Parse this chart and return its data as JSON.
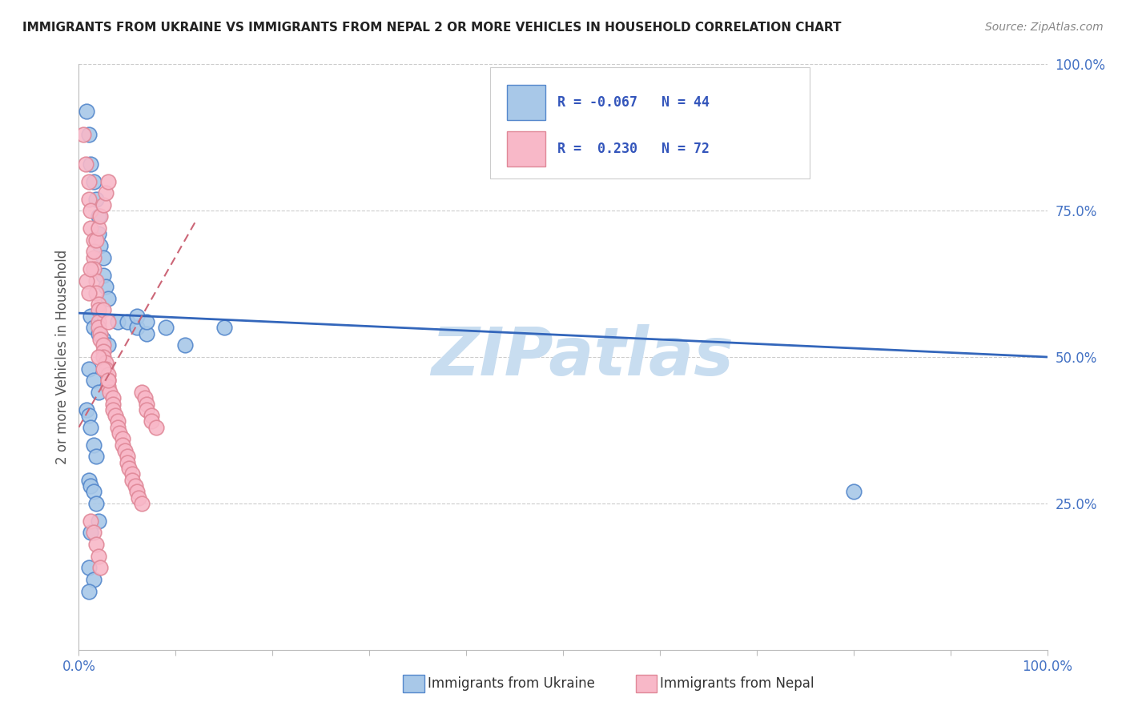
{
  "title": "IMMIGRANTS FROM UKRAINE VS IMMIGRANTS FROM NEPAL 2 OR MORE VEHICLES IN HOUSEHOLD CORRELATION CHART",
  "source": "Source: ZipAtlas.com",
  "ylabel": "2 or more Vehicles in Household",
  "ukraine_color_face": "#a8c8e8",
  "ukraine_color_edge": "#5588cc",
  "nepal_color_face": "#f8b8c8",
  "nepal_color_edge": "#e08898",
  "ukraine_line_color": "#3366bb",
  "nepal_line_color": "#cc6677",
  "watermark": "ZIPatlas",
  "watermark_color": "#c8ddf0",
  "xlim": [
    0.0,
    1.0
  ],
  "ylim": [
    0.0,
    1.0
  ],
  "yticks": [
    0.25,
    0.5,
    0.75,
    1.0
  ],
  "ytick_labels": [
    "25.0%",
    "50.0%",
    "75.0%",
    "100.0%"
  ],
  "xtick_positions": [
    0.0,
    0.1,
    0.2,
    0.3,
    0.4,
    0.5,
    0.6,
    0.7,
    0.8,
    0.9,
    1.0
  ],
  "ukraine_R": -0.067,
  "ukraine_N": 44,
  "nepal_R": 0.23,
  "nepal_N": 72,
  "ukraine_line_x": [
    0.0,
    1.0
  ],
  "ukraine_line_y": [
    0.575,
    0.5
  ],
  "nepal_line_x": [
    0.0,
    0.12
  ],
  "nepal_line_y": [
    0.38,
    0.73
  ],
  "ukraine_scatter_x": [
    0.008,
    0.01,
    0.012,
    0.015,
    0.018,
    0.02,
    0.02,
    0.022,
    0.025,
    0.025,
    0.028,
    0.03,
    0.012,
    0.015,
    0.02,
    0.025,
    0.03,
    0.04,
    0.05,
    0.06,
    0.07,
    0.09,
    0.11,
    0.15,
    0.06,
    0.07,
    0.01,
    0.015,
    0.02,
    0.008,
    0.01,
    0.012,
    0.015,
    0.018,
    0.01,
    0.012,
    0.015,
    0.018,
    0.02,
    0.012,
    0.8,
    0.01,
    0.015,
    0.01
  ],
  "ukraine_scatter_y": [
    0.92,
    0.88,
    0.83,
    0.8,
    0.77,
    0.74,
    0.71,
    0.69,
    0.67,
    0.64,
    0.62,
    0.6,
    0.57,
    0.55,
    0.54,
    0.53,
    0.52,
    0.56,
    0.56,
    0.55,
    0.54,
    0.55,
    0.52,
    0.55,
    0.57,
    0.56,
    0.48,
    0.46,
    0.44,
    0.41,
    0.4,
    0.38,
    0.35,
    0.33,
    0.29,
    0.28,
    0.27,
    0.25,
    0.22,
    0.2,
    0.27,
    0.14,
    0.12,
    0.1
  ],
  "nepal_scatter_x": [
    0.005,
    0.007,
    0.01,
    0.01,
    0.012,
    0.012,
    0.015,
    0.015,
    0.015,
    0.018,
    0.018,
    0.02,
    0.02,
    0.02,
    0.02,
    0.022,
    0.022,
    0.025,
    0.025,
    0.025,
    0.028,
    0.028,
    0.03,
    0.03,
    0.03,
    0.032,
    0.035,
    0.035,
    0.035,
    0.038,
    0.04,
    0.04,
    0.042,
    0.045,
    0.045,
    0.048,
    0.05,
    0.05,
    0.052,
    0.055,
    0.055,
    0.058,
    0.06,
    0.062,
    0.065,
    0.065,
    0.068,
    0.07,
    0.07,
    0.075,
    0.075,
    0.08,
    0.025,
    0.03,
    0.02,
    0.025,
    0.03,
    0.008,
    0.01,
    0.012,
    0.015,
    0.018,
    0.02,
    0.022,
    0.025,
    0.028,
    0.03,
    0.012,
    0.015,
    0.018,
    0.02,
    0.022
  ],
  "nepal_scatter_y": [
    0.88,
    0.83,
    0.8,
    0.77,
    0.75,
    0.72,
    0.7,
    0.67,
    0.65,
    0.63,
    0.61,
    0.59,
    0.58,
    0.56,
    0.55,
    0.54,
    0.53,
    0.52,
    0.51,
    0.5,
    0.49,
    0.48,
    0.47,
    0.46,
    0.45,
    0.44,
    0.43,
    0.42,
    0.41,
    0.4,
    0.39,
    0.38,
    0.37,
    0.36,
    0.35,
    0.34,
    0.33,
    0.32,
    0.31,
    0.3,
    0.29,
    0.28,
    0.27,
    0.26,
    0.25,
    0.44,
    0.43,
    0.42,
    0.41,
    0.4,
    0.39,
    0.38,
    0.58,
    0.56,
    0.5,
    0.48,
    0.46,
    0.63,
    0.61,
    0.65,
    0.68,
    0.7,
    0.72,
    0.74,
    0.76,
    0.78,
    0.8,
    0.22,
    0.2,
    0.18,
    0.16,
    0.14
  ]
}
